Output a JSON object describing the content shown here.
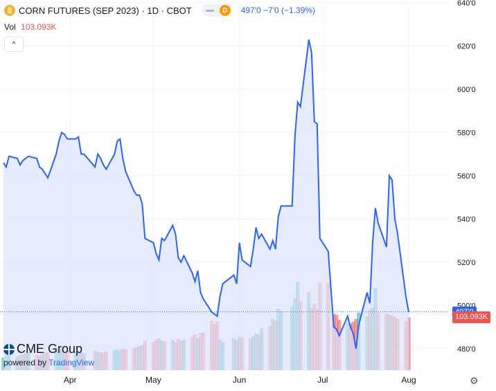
{
  "header": {
    "title": "CORN FUTURES (SEP 2023) · 1D · CBOT",
    "interval_badge": "D",
    "last_change": "497'0  −7'0 (−1.39%)"
  },
  "volume_legend": {
    "label": "Vol",
    "value": "103.093K"
  },
  "collapse_label": "^",
  "branding": {
    "brand": "CME Group",
    "powered_prefix": "powered by",
    "powered_name": "TradingView"
  },
  "settings_icon": "gear-icon",
  "colors": {
    "line": "#2962ff",
    "area": "#dbe4fd",
    "vol_up": "#26a69a",
    "vol_down": "#ef5350",
    "grid": "#f0f3fa"
  },
  "chart_data": {
    "type": "area",
    "price_axis": {
      "min": 470,
      "max": 640,
      "ticks": [
        480,
        500,
        520,
        540,
        560,
        580,
        600,
        620,
        640
      ],
      "tick_labels": [
        "480'0",
        "500'0",
        "520'0",
        "540'0",
        "560'0",
        "580'0",
        "600'0",
        "620'0",
        "640'0"
      ]
    },
    "x_labels": [
      {
        "label": "Apr",
        "date": "2023-04-01"
      },
      {
        "label": "May",
        "date": "2023-05-01"
      },
      {
        "label": "Jun",
        "date": "2023-06-01"
      },
      {
        "label": "Jul",
        "date": "2023-07-01"
      },
      {
        "label": "Aug",
        "date": "2023-08-01"
      }
    ],
    "last_price": {
      "value": 497,
      "label": "497'0"
    },
    "last_volume": {
      "value": 103093,
      "label": "103.093K"
    },
    "volume_max": 175000,
    "series": [
      {
        "name": "price",
        "points": [
          [
            "2023-03-08",
            566
          ],
          [
            "2023-03-09",
            564
          ],
          [
            "2023-03-10",
            569
          ],
          [
            "2023-03-13",
            568
          ],
          [
            "2023-03-14",
            565
          ],
          [
            "2023-03-15",
            567
          ],
          [
            "2023-03-16",
            568
          ],
          [
            "2023-03-17",
            569
          ],
          [
            "2023-03-20",
            568
          ],
          [
            "2023-03-21",
            564
          ],
          [
            "2023-03-22",
            563
          ],
          [
            "2023-03-23",
            561
          ],
          [
            "2023-03-24",
            559
          ],
          [
            "2023-03-27",
            570
          ],
          [
            "2023-03-28",
            576
          ],
          [
            "2023-03-29",
            580
          ],
          [
            "2023-03-30",
            579
          ],
          [
            "2023-03-31",
            577
          ],
          [
            "2023-04-03",
            577
          ],
          [
            "2023-04-04",
            578
          ],
          [
            "2023-04-05",
            570
          ],
          [
            "2023-04-06",
            570
          ],
          [
            "2023-04-10",
            564
          ],
          [
            "2023-04-11",
            570
          ],
          [
            "2023-04-12",
            568
          ],
          [
            "2023-04-13",
            565
          ],
          [
            "2023-04-14",
            563
          ],
          [
            "2023-04-17",
            570
          ],
          [
            "2023-04-18",
            576
          ],
          [
            "2023-04-19",
            577
          ],
          [
            "2023-04-20",
            568
          ],
          [
            "2023-04-21",
            562
          ],
          [
            "2023-04-24",
            553
          ],
          [
            "2023-04-25",
            551
          ],
          [
            "2023-04-26",
            551
          ],
          [
            "2023-04-27",
            547
          ],
          [
            "2023-04-28",
            531
          ],
          [
            "2023-05-01",
            529
          ],
          [
            "2023-05-02",
            524
          ],
          [
            "2023-05-03",
            521
          ],
          [
            "2023-05-04",
            531
          ],
          [
            "2023-05-05",
            530
          ],
          [
            "2023-05-08",
            537
          ],
          [
            "2023-05-09",
            533
          ],
          [
            "2023-05-10",
            522
          ],
          [
            "2023-05-11",
            520
          ],
          [
            "2023-05-12",
            523
          ],
          [
            "2023-05-15",
            515
          ],
          [
            "2023-05-16",
            511
          ],
          [
            "2023-05-17",
            516
          ],
          [
            "2023-05-18",
            506
          ],
          [
            "2023-05-19",
            503
          ],
          [
            "2023-05-22",
            497
          ],
          [
            "2023-05-23",
            496
          ],
          [
            "2023-05-24",
            495
          ],
          [
            "2023-05-25",
            504
          ],
          [
            "2023-05-26",
            510
          ],
          [
            "2023-05-30",
            514
          ],
          [
            "2023-05-31",
            510
          ],
          [
            "2023-06-01",
            529
          ],
          [
            "2023-06-02",
            521
          ],
          [
            "2023-06-05",
            518
          ],
          [
            "2023-06-06",
            526
          ],
          [
            "2023-06-07",
            536
          ],
          [
            "2023-06-08",
            531
          ],
          [
            "2023-06-09",
            533
          ],
          [
            "2023-06-12",
            526
          ],
          [
            "2023-06-13",
            530
          ],
          [
            "2023-06-14",
            526
          ],
          [
            "2023-06-15",
            541
          ],
          [
            "2023-06-16",
            546
          ],
          [
            "2023-06-20",
            546
          ],
          [
            "2023-06-21",
            578
          ],
          [
            "2023-06-22",
            594
          ],
          [
            "2023-06-23",
            592
          ],
          [
            "2023-06-26",
            623
          ],
          [
            "2023-06-27",
            617
          ],
          [
            "2023-06-28",
            585
          ],
          [
            "2023-06-29",
            584
          ],
          [
            "2023-06-30",
            531
          ],
          [
            "2023-07-03",
            525
          ],
          [
            "2023-07-05",
            490
          ],
          [
            "2023-07-06",
            489
          ],
          [
            "2023-07-07",
            486
          ],
          [
            "2023-07-10",
            495
          ],
          [
            "2023-07-11",
            490
          ],
          [
            "2023-07-12",
            487
          ],
          [
            "2023-07-13",
            480
          ],
          [
            "2023-07-14",
            491
          ],
          [
            "2023-07-17",
            506
          ],
          [
            "2023-07-18",
            501
          ],
          [
            "2023-07-19",
            529
          ],
          [
            "2023-07-20",
            545
          ],
          [
            "2023-07-21",
            538
          ],
          [
            "2023-07-24",
            527
          ],
          [
            "2023-07-25",
            560
          ],
          [
            "2023-07-26",
            558
          ],
          [
            "2023-07-27",
            540
          ],
          [
            "2023-07-28",
            533
          ],
          [
            "2023-07-31",
            504
          ],
          [
            "2023-08-01",
            497
          ]
        ]
      },
      {
        "name": "volume",
        "points": [
          [
            "2023-03-08",
            25000,
            "up"
          ],
          [
            "2023-03-09",
            28000,
            "up"
          ],
          [
            "2023-03-10",
            30000,
            "up"
          ],
          [
            "2023-03-13",
            27000,
            "up"
          ],
          [
            "2023-03-14",
            29000,
            "down"
          ],
          [
            "2023-03-15",
            31000,
            "up"
          ],
          [
            "2023-03-16",
            33000,
            "down"
          ],
          [
            "2023-03-17",
            35000,
            "up"
          ],
          [
            "2023-03-20",
            30000,
            "down"
          ],
          [
            "2023-03-21",
            28000,
            "down"
          ],
          [
            "2023-03-22",
            32000,
            "up"
          ],
          [
            "2023-03-23",
            34000,
            "down"
          ],
          [
            "2023-03-24",
            36000,
            "down"
          ],
          [
            "2023-03-27",
            38000,
            "up"
          ],
          [
            "2023-03-28",
            40000,
            "up"
          ],
          [
            "2023-03-29",
            41000,
            "up"
          ],
          [
            "2023-03-30",
            37000,
            "down"
          ],
          [
            "2023-03-31",
            39000,
            "down"
          ],
          [
            "2023-04-03",
            35000,
            "up"
          ],
          [
            "2023-04-04",
            36000,
            "up"
          ],
          [
            "2023-04-05",
            34000,
            "down"
          ],
          [
            "2023-04-06",
            33000,
            "up"
          ],
          [
            "2023-04-10",
            38000,
            "down"
          ],
          [
            "2023-04-11",
            36000,
            "up"
          ],
          [
            "2023-04-12",
            35000,
            "down"
          ],
          [
            "2023-04-13",
            34000,
            "down"
          ],
          [
            "2023-04-14",
            37000,
            "down"
          ],
          [
            "2023-04-17",
            39000,
            "up"
          ],
          [
            "2023-04-18",
            40000,
            "up"
          ],
          [
            "2023-04-19",
            38000,
            "up"
          ],
          [
            "2023-04-20",
            42000,
            "down"
          ],
          [
            "2023-04-21",
            41000,
            "down"
          ],
          [
            "2023-04-24",
            43000,
            "down"
          ],
          [
            "2023-04-25",
            45000,
            "down"
          ],
          [
            "2023-04-26",
            47000,
            "up"
          ],
          [
            "2023-04-27",
            49000,
            "down"
          ],
          [
            "2023-04-28",
            58000,
            "down"
          ],
          [
            "2023-05-01",
            55000,
            "down"
          ],
          [
            "2023-05-02",
            60000,
            "down"
          ],
          [
            "2023-05-03",
            62000,
            "down"
          ],
          [
            "2023-05-04",
            58000,
            "up"
          ],
          [
            "2023-05-05",
            56000,
            "down"
          ],
          [
            "2023-05-08",
            59000,
            "up"
          ],
          [
            "2023-05-09",
            54000,
            "down"
          ],
          [
            "2023-05-10",
            61000,
            "down"
          ],
          [
            "2023-05-11",
            57000,
            "down"
          ],
          [
            "2023-05-12",
            60000,
            "up"
          ],
          [
            "2023-05-15",
            65000,
            "down"
          ],
          [
            "2023-05-16",
            70000,
            "down"
          ],
          [
            "2023-05-17",
            62000,
            "up"
          ],
          [
            "2023-05-18",
            72000,
            "down"
          ],
          [
            "2023-05-19",
            74000,
            "down"
          ],
          [
            "2023-05-22",
            96000,
            "down"
          ],
          [
            "2023-05-23",
            90000,
            "down"
          ],
          [
            "2023-05-24",
            95000,
            "down"
          ],
          [
            "2023-05-25",
            60000,
            "up"
          ],
          [
            "2023-05-26",
            55000,
            "up"
          ],
          [
            "2023-05-30",
            62000,
            "up"
          ],
          [
            "2023-05-31",
            58000,
            "down"
          ],
          [
            "2023-06-01",
            65000,
            "up"
          ],
          [
            "2023-06-02",
            63000,
            "down"
          ],
          [
            "2023-06-05",
            62000,
            "down"
          ],
          [
            "2023-06-06",
            66000,
            "up"
          ],
          [
            "2023-06-07",
            72000,
            "up"
          ],
          [
            "2023-06-08",
            69000,
            "down"
          ],
          [
            "2023-06-09",
            82000,
            "up"
          ],
          [
            "2023-06-12",
            86000,
            "down"
          ],
          [
            "2023-06-13",
            100000,
            "up"
          ],
          [
            "2023-06-14",
            96000,
            "down"
          ],
          [
            "2023-06-15",
            120000,
            "up"
          ],
          [
            "2023-06-16",
            115000,
            "up"
          ],
          [
            "2023-06-20",
            125000,
            "up"
          ],
          [
            "2023-06-21",
            140000,
            "up"
          ],
          [
            "2023-06-22",
            172000,
            "up"
          ],
          [
            "2023-06-23",
            135000,
            "down"
          ],
          [
            "2023-06-26",
            152000,
            "up"
          ],
          [
            "2023-06-27",
            120000,
            "down"
          ],
          [
            "2023-06-28",
            130000,
            "down"
          ],
          [
            "2023-06-29",
            118000,
            "down"
          ],
          [
            "2023-06-30",
            170000,
            "down"
          ],
          [
            "2023-07-03",
            170000,
            "down"
          ],
          [
            "2023-07-05",
            110000,
            "down"
          ],
          [
            "2023-07-06",
            108000,
            "down"
          ],
          [
            "2023-07-07",
            98000,
            "down"
          ],
          [
            "2023-07-10",
            92000,
            "up"
          ],
          [
            "2023-07-11",
            90000,
            "down"
          ],
          [
            "2023-07-12",
            94000,
            "down"
          ],
          [
            "2023-07-13",
            100000,
            "down"
          ],
          [
            "2023-07-14",
            112000,
            "up"
          ],
          [
            "2023-07-17",
            105000,
            "up"
          ],
          [
            "2023-07-18",
            118000,
            "down"
          ],
          [
            "2023-07-19",
            122000,
            "up"
          ],
          [
            "2023-07-20",
            160000,
            "up"
          ],
          [
            "2023-07-21",
            112000,
            "down"
          ],
          [
            "2023-07-24",
            110000,
            "down"
          ],
          [
            "2023-07-25",
            108000,
            "up"
          ],
          [
            "2023-07-26",
            106000,
            "down"
          ],
          [
            "2023-07-27",
            104000,
            "down"
          ],
          [
            "2023-07-28",
            100000,
            "down"
          ],
          [
            "2023-07-31",
            95000,
            "down"
          ],
          [
            "2023-08-01",
            103093,
            "down"
          ]
        ]
      }
    ]
  }
}
